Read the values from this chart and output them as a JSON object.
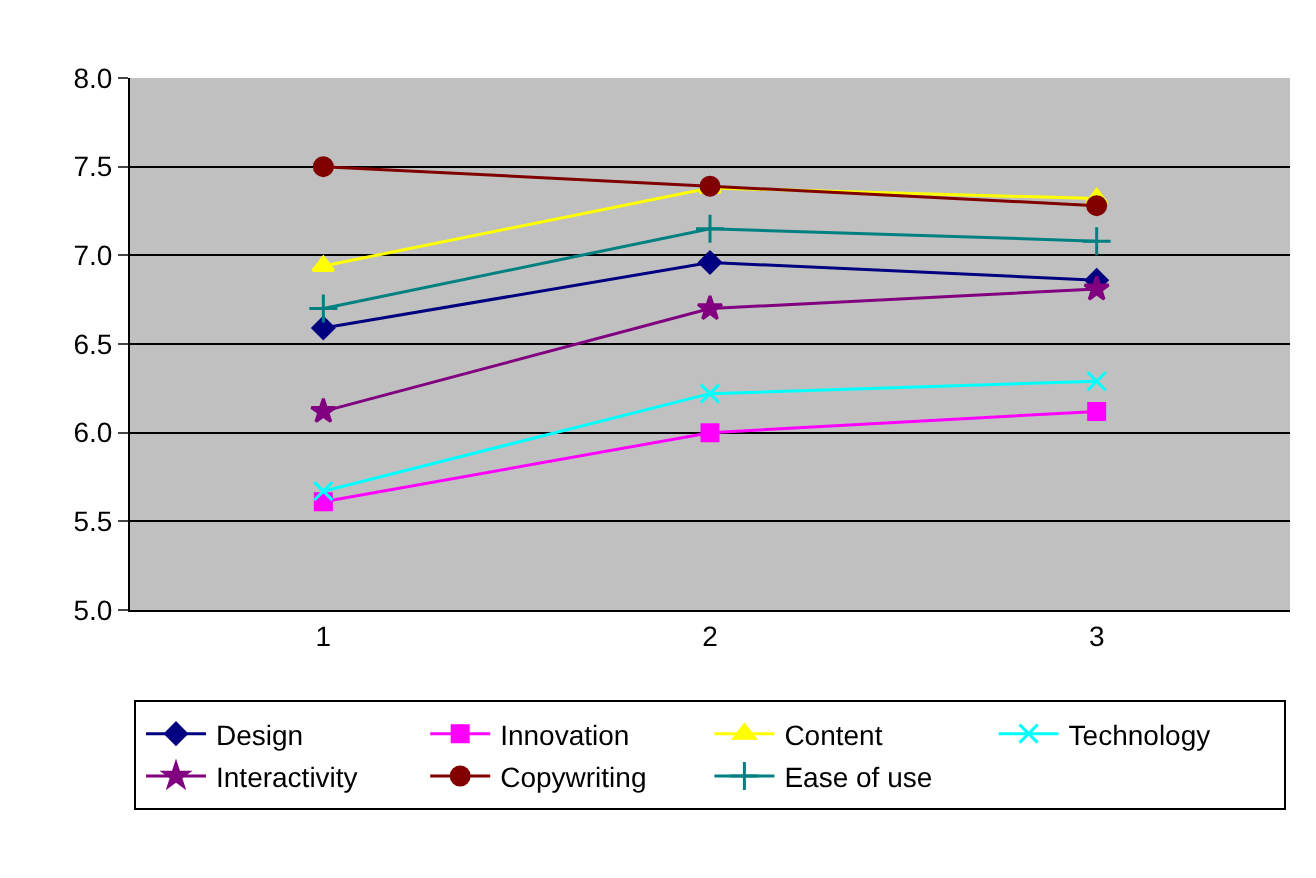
{
  "chart_data": {
    "type": "line",
    "categories": [
      "1",
      "2",
      "3"
    ],
    "series": [
      {
        "name": "Design",
        "color": "#000080",
        "marker": "diamond",
        "values": [
          6.59,
          6.96,
          6.86
        ]
      },
      {
        "name": "Innovation",
        "color": "#ff00ff",
        "marker": "square",
        "values": [
          5.61,
          6.0,
          6.12
        ]
      },
      {
        "name": "Content",
        "color": "#ffff00",
        "marker": "triangle",
        "values": [
          6.94,
          7.38,
          7.32
        ]
      },
      {
        "name": "Technology",
        "color": "#00ffff",
        "marker": "x",
        "values": [
          5.67,
          6.22,
          6.29
        ]
      },
      {
        "name": "Interactivity",
        "color": "#800080",
        "marker": "star",
        "values": [
          6.12,
          6.7,
          6.81
        ]
      },
      {
        "name": "Copywriting",
        "color": "#800000",
        "marker": "circle",
        "values": [
          7.5,
          7.39,
          7.28
        ]
      },
      {
        "name": "Ease of use",
        "color": "#008080",
        "marker": "cross",
        "values": [
          6.7,
          7.15,
          7.08
        ]
      }
    ],
    "ylim": [
      5.0,
      8.0
    ],
    "yticks": [
      {
        "value": 5,
        "label": "5.0"
      },
      {
        "value": 5.5,
        "label": "5.5"
      },
      {
        "value": 6,
        "label": "6.0"
      },
      {
        "value": 6.5,
        "label": "6.5"
      },
      {
        "value": 7,
        "label": "7.0"
      },
      {
        "value": 7.5,
        "label": "7.5"
      },
      {
        "value": 8,
        "label": "8.0"
      }
    ],
    "grid": "y",
    "legend": "bottom"
  }
}
